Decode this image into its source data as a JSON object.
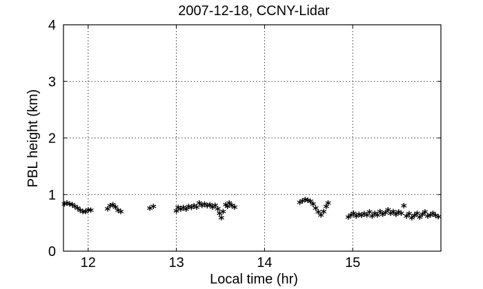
{
  "chart_data": {
    "type": "scatter",
    "title": "2007-12-18, CCNY-Lidar",
    "xlabel": "Local time (hr)",
    "ylabel": "PBL height (km)",
    "xlim": [
      11.72,
      16.0
    ],
    "ylim": [
      0,
      4
    ],
    "xticks": [
      12,
      13,
      14,
      15
    ],
    "yticks": [
      0,
      1,
      2,
      3,
      4
    ],
    "grid": true,
    "marker": "*",
    "marker_color": "#000000",
    "series": [
      {
        "points": [
          [
            11.73,
            0.8
          ],
          [
            11.76,
            0.82
          ],
          [
            11.79,
            0.8
          ],
          [
            11.82,
            0.79
          ],
          [
            11.85,
            0.76
          ],
          [
            11.88,
            0.73
          ],
          [
            11.91,
            0.69
          ],
          [
            11.94,
            0.67
          ],
          [
            11.97,
            0.67
          ],
          [
            12.0,
            0.7
          ],
          [
            12.03,
            0.69
          ],
          [
            12.22,
            0.72
          ],
          [
            12.25,
            0.77
          ],
          [
            12.28,
            0.79
          ],
          [
            12.31,
            0.75
          ],
          [
            12.34,
            0.69
          ],
          [
            12.37,
            0.67
          ],
          [
            12.7,
            0.73
          ],
          [
            12.74,
            0.76
          ],
          [
            13.0,
            0.68
          ],
          [
            13.02,
            0.74
          ],
          [
            13.05,
            0.71
          ],
          [
            13.08,
            0.74
          ],
          [
            13.11,
            0.71
          ],
          [
            13.14,
            0.76
          ],
          [
            13.17,
            0.74
          ],
          [
            13.2,
            0.77
          ],
          [
            13.23,
            0.75
          ],
          [
            13.26,
            0.82
          ],
          [
            13.29,
            0.78
          ],
          [
            13.32,
            0.8
          ],
          [
            13.35,
            0.77
          ],
          [
            13.38,
            0.79
          ],
          [
            13.41,
            0.75
          ],
          [
            13.44,
            0.78
          ],
          [
            13.47,
            0.72
          ],
          [
            13.49,
            0.64
          ],
          [
            13.51,
            0.56
          ],
          [
            13.53,
            0.67
          ],
          [
            13.56,
            0.79
          ],
          [
            13.58,
            0.76
          ],
          [
            13.6,
            0.82
          ],
          [
            13.63,
            0.78
          ],
          [
            13.66,
            0.75
          ],
          [
            14.4,
            0.83
          ],
          [
            14.43,
            0.86
          ],
          [
            14.46,
            0.88
          ],
          [
            14.49,
            0.87
          ],
          [
            14.52,
            0.85
          ],
          [
            14.55,
            0.8
          ],
          [
            14.58,
            0.73
          ],
          [
            14.61,
            0.66
          ],
          [
            14.64,
            0.61
          ],
          [
            14.67,
            0.67
          ],
          [
            14.7,
            0.76
          ],
          [
            14.72,
            0.82
          ],
          [
            14.95,
            0.57
          ],
          [
            14.98,
            0.61
          ],
          [
            15.01,
            0.64
          ],
          [
            15.04,
            0.59
          ],
          [
            15.07,
            0.62
          ],
          [
            15.1,
            0.6
          ],
          [
            15.13,
            0.63
          ],
          [
            15.16,
            0.61
          ],
          [
            15.19,
            0.66
          ],
          [
            15.22,
            0.59
          ],
          [
            15.25,
            0.64
          ],
          [
            15.28,
            0.61
          ],
          [
            15.31,
            0.67
          ],
          [
            15.34,
            0.62
          ],
          [
            15.37,
            0.65
          ],
          [
            15.4,
            0.7
          ],
          [
            15.43,
            0.64
          ],
          [
            15.46,
            0.67
          ],
          [
            15.49,
            0.62
          ],
          [
            15.52,
            0.66
          ],
          [
            15.55,
            0.64
          ],
          [
            15.58,
            0.77
          ],
          [
            15.61,
            0.59
          ],
          [
            15.64,
            0.63
          ],
          [
            15.67,
            0.56
          ],
          [
            15.7,
            0.6
          ],
          [
            15.73,
            0.64
          ],
          [
            15.76,
            0.57
          ],
          [
            15.79,
            0.62
          ],
          [
            15.82,
            0.66
          ],
          [
            15.85,
            0.59
          ],
          [
            15.88,
            0.61
          ],
          [
            15.91,
            0.64
          ],
          [
            15.94,
            0.6
          ],
          [
            15.97,
            0.58
          ]
        ]
      }
    ]
  }
}
